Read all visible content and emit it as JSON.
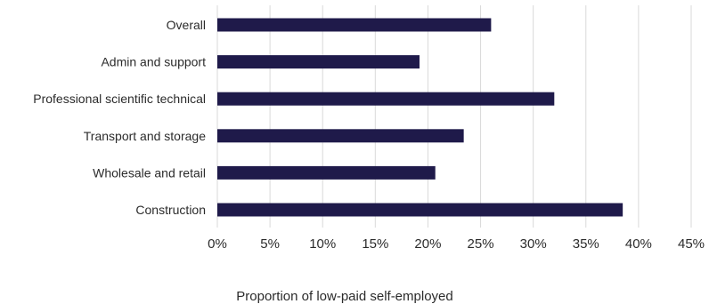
{
  "chart_data": {
    "type": "bar",
    "orientation": "horizontal",
    "categories": [
      "Overall",
      "Admin and support",
      "Professional scientific technical",
      "Transport and storage",
      "Wholesale and retail",
      "Construction"
    ],
    "series": [
      {
        "values": [
          26.0,
          19.2,
          32.0,
          23.4,
          20.7,
          38.5
        ]
      }
    ],
    "xlabel": "Proportion of low-paid self-employed",
    "ylabel": "",
    "xlim": [
      0,
      45
    ],
    "xticks": [
      0,
      5,
      10,
      15,
      20,
      25,
      30,
      35,
      40,
      45
    ],
    "tick_suffix": "%",
    "grid": true,
    "bar_color": "#1f1a4a",
    "grid_color": "#d9d9d9"
  }
}
